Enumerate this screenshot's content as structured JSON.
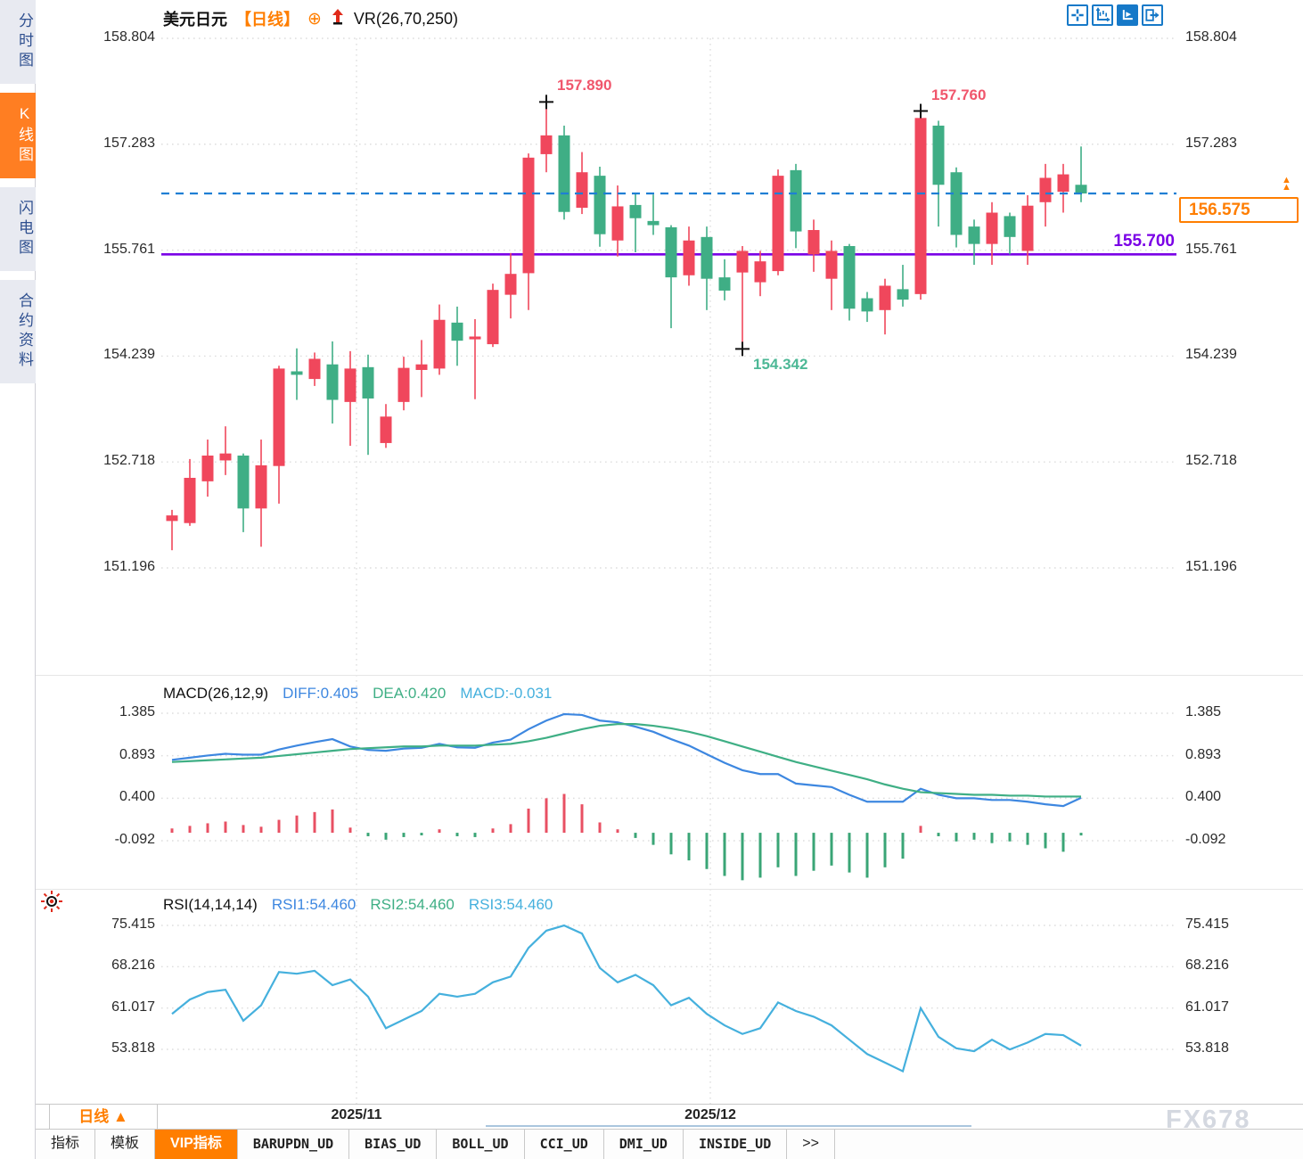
{
  "sidebar": {
    "items": [
      {
        "label": "分时图",
        "active": false
      },
      {
        "label": "K线图",
        "active": true
      },
      {
        "label": "闪电图",
        "active": false
      },
      {
        "label": "合约资料",
        "active": false
      }
    ]
  },
  "header": {
    "symbol": "美元日元",
    "period_tag": "【日线】",
    "plus_icon": "⊕",
    "indicator": "VR(26,70,250)"
  },
  "toolbar_icons": [
    {
      "name": "crosshair-icon",
      "active": false
    },
    {
      "name": "axis-scale-icon",
      "active": false
    },
    {
      "name": "axis-play-icon",
      "active": true
    },
    {
      "name": "jump-to-latest-icon",
      "active": false
    }
  ],
  "price_panel": {
    "y_ticks": [
      "158.804",
      "157.283",
      "155.761",
      "154.239",
      "152.718",
      "151.196"
    ],
    "support_label": "155.700",
    "current_price_label": "156.575",
    "current_price_marker": "▲"
  },
  "macd_panel": {
    "title": "MACD(26,12,9)",
    "diff_label": "DIFF:0.405",
    "dea_label": "DEA:0.420",
    "macd_label": "MACD:-0.031",
    "y_ticks": [
      "1.385",
      "0.893",
      "0.400",
      "-0.092"
    ]
  },
  "rsi_panel": {
    "title": "RSI(14,14,14)",
    "rsi1_label": "RSI1:54.460",
    "rsi2_label": "RSI2:54.460",
    "rsi3_label": "RSI3:54.460",
    "y_ticks": [
      "75.415",
      "68.216",
      "61.017",
      "53.818"
    ]
  },
  "x_axis": {
    "period_selector": "日线 ▲",
    "labels": [
      "2025/11",
      "2025/12"
    ]
  },
  "bottom_tabs": [
    {
      "label": "指标",
      "active": false,
      "mono": false
    },
    {
      "label": "模板",
      "active": false,
      "mono": false
    },
    {
      "label": "VIP指标",
      "active": true,
      "mono": false
    },
    {
      "label": "BARUPDN_UD",
      "active": false,
      "mono": true
    },
    {
      "label": "BIAS_UD",
      "active": false,
      "mono": true
    },
    {
      "label": "BOLL_UD",
      "active": false,
      "mono": true
    },
    {
      "label": "CCI_UD",
      "active": false,
      "mono": true
    },
    {
      "label": "DMI_UD",
      "active": false,
      "mono": true
    },
    {
      "label": "INSIDE_UD",
      "active": false,
      "mono": true
    },
    {
      "label": ">>",
      "active": false,
      "mono": false
    }
  ],
  "watermark": "FX678",
  "colors": {
    "accent_orange": "#ff7e00",
    "candle_up": "#f0475c",
    "candle_down": "#3fae85",
    "diff_line": "#3d87e0",
    "dea_line": "#3faf85",
    "macd_hist_pos": "#e85063",
    "macd_hist_neg": "#3aa576",
    "rsi_line": "#45b0dd",
    "macd_value_text": "#45b0dd",
    "current_price_line": "#1f7fd4",
    "support_line": "#7a00e6",
    "annotation_high": "#f0566c",
    "annotation_low": "#4db896",
    "icon_blue": "#1679c8",
    "gridline": "#dedede"
  },
  "chart_data": {
    "type": "candlestick",
    "title": "美元日元 日线 (USD/JPY daily)",
    "price_axis": {
      "gridlines": [
        158.804,
        157.283,
        155.761,
        154.239,
        152.718,
        151.196
      ]
    },
    "support_line": 155.7,
    "current_price": 156.575,
    "candles_ohlc": [
      [
        151.87,
        152.03,
        151.45,
        151.95
      ],
      [
        151.84,
        152.76,
        151.8,
        152.49
      ],
      [
        152.44,
        153.04,
        152.22,
        152.81
      ],
      [
        152.74,
        153.23,
        152.53,
        152.84
      ],
      [
        152.81,
        152.84,
        151.71,
        152.05
      ],
      [
        152.05,
        153.04,
        151.5,
        152.67
      ],
      [
        152.66,
        154.1,
        152.12,
        154.06
      ],
      [
        154.02,
        154.35,
        153.61,
        153.97
      ],
      [
        153.91,
        154.29,
        153.81,
        154.2
      ],
      [
        154.12,
        154.45,
        153.27,
        153.61
      ],
      [
        153.58,
        154.31,
        152.95,
        154.06
      ],
      [
        154.08,
        154.26,
        152.82,
        153.63
      ],
      [
        152.99,
        153.55,
        152.92,
        153.37
      ],
      [
        153.58,
        154.23,
        153.46,
        154.07
      ],
      [
        154.04,
        154.47,
        153.65,
        154.12
      ],
      [
        154.06,
        154.98,
        153.97,
        154.76
      ],
      [
        154.72,
        154.95,
        154.1,
        154.46
      ],
      [
        154.48,
        154.77,
        153.62,
        154.52
      ],
      [
        154.41,
        155.28,
        154.37,
        155.19
      ],
      [
        155.12,
        155.72,
        154.78,
        155.42
      ],
      [
        155.43,
        157.15,
        154.9,
        157.09
      ],
      [
        157.14,
        157.89,
        156.88,
        157.41
      ],
      [
        157.41,
        157.55,
        156.2,
        156.31
      ],
      [
        156.37,
        157.17,
        156.28,
        156.88
      ],
      [
        156.83,
        156.96,
        155.81,
        155.99
      ],
      [
        155.9,
        156.69,
        155.67,
        156.39
      ],
      [
        156.41,
        156.58,
        155.73,
        156.22
      ],
      [
        156.18,
        156.56,
        155.98,
        156.12
      ],
      [
        156.09,
        156.12,
        154.64,
        155.37
      ],
      [
        155.4,
        156.1,
        155.25,
        155.9
      ],
      [
        155.95,
        156.1,
        154.9,
        155.35
      ],
      [
        155.37,
        155.63,
        155.04,
        155.18
      ],
      [
        155.44,
        155.82,
        154.34,
        155.75
      ],
      [
        155.3,
        155.75,
        155.1,
        155.6
      ],
      [
        155.46,
        156.92,
        155.4,
        156.83
      ],
      [
        156.91,
        157.0,
        155.79,
        156.03
      ],
      [
        155.7,
        156.2,
        155.45,
        156.05
      ],
      [
        155.35,
        155.9,
        154.9,
        155.75
      ],
      [
        155.82,
        155.85,
        154.75,
        154.92
      ],
      [
        155.07,
        155.16,
        154.73,
        154.88
      ],
      [
        154.9,
        155.35,
        154.55,
        155.25
      ],
      [
        155.2,
        155.55,
        154.95,
        155.05
      ],
      [
        155.13,
        157.76,
        155.05,
        157.66
      ],
      [
        157.55,
        157.62,
        156.1,
        156.7
      ],
      [
        156.88,
        156.95,
        155.8,
        155.98
      ],
      [
        156.1,
        156.2,
        155.55,
        155.85
      ],
      [
        155.85,
        156.45,
        155.55,
        156.3
      ],
      [
        156.25,
        156.3,
        155.7,
        155.95
      ],
      [
        155.75,
        156.55,
        155.55,
        156.4
      ],
      [
        156.45,
        157.0,
        156.1,
        156.8
      ],
      [
        156.6,
        157.0,
        156.3,
        156.85
      ],
      [
        156.7,
        157.25,
        156.45,
        156.575
      ]
    ],
    "annotations": [
      {
        "kind": "high",
        "candle_index": 21,
        "price": 157.89,
        "label": "157.890"
      },
      {
        "kind": "high",
        "candle_index": 42,
        "price": 157.76,
        "label": "157.760"
      },
      {
        "kind": "low",
        "candle_index": 32,
        "price": 154.342,
        "label": "154.342"
      }
    ],
    "month_ticks": [
      {
        "label": "2025/11",
        "index": 10.35
      },
      {
        "label": "2025/12",
        "index": 30.2
      }
    ],
    "macd": {
      "params": "26,12,9",
      "diff_value": 0.405,
      "dea_value": 0.42,
      "macd_value": -0.031,
      "gridlines": [
        1.385,
        0.893,
        0.4,
        -0.092
      ],
      "diff": [
        0.845,
        0.87,
        0.895,
        0.915,
        0.905,
        0.905,
        0.965,
        1.01,
        1.05,
        1.085,
        1.0,
        0.96,
        0.95,
        0.975,
        0.985,
        1.03,
        0.99,
        0.985,
        1.045,
        1.08,
        1.2,
        1.3,
        1.375,
        1.365,
        1.3,
        1.28,
        1.23,
        1.17,
        1.085,
        1.01,
        0.91,
        0.81,
        0.725,
        0.68,
        0.68,
        0.57,
        0.55,
        0.53,
        0.44,
        0.36,
        0.36,
        0.36,
        0.51,
        0.44,
        0.4,
        0.4,
        0.38,
        0.38,
        0.36,
        0.33,
        0.31,
        0.405
      ],
      "dea": [
        0.82,
        0.83,
        0.84,
        0.85,
        0.86,
        0.87,
        0.89,
        0.91,
        0.93,
        0.95,
        0.97,
        0.98,
        0.99,
        1.0,
        1.0,
        1.01,
        1.01,
        1.01,
        1.02,
        1.03,
        1.06,
        1.1,
        1.15,
        1.2,
        1.24,
        1.26,
        1.26,
        1.24,
        1.21,
        1.17,
        1.12,
        1.06,
        1.0,
        0.94,
        0.88,
        0.82,
        0.77,
        0.72,
        0.67,
        0.62,
        0.56,
        0.51,
        0.47,
        0.46,
        0.45,
        0.44,
        0.44,
        0.43,
        0.43,
        0.42,
        0.42,
        0.42
      ],
      "hist": [
        0.05,
        0.08,
        0.11,
        0.13,
        0.09,
        0.07,
        0.15,
        0.2,
        0.24,
        0.27,
        0.06,
        -0.04,
        -0.08,
        -0.05,
        -0.03,
        0.04,
        -0.04,
        -0.05,
        0.05,
        0.1,
        0.28,
        0.4,
        0.45,
        0.33,
        0.12,
        0.04,
        -0.06,
        -0.14,
        -0.25,
        -0.32,
        -0.42,
        -0.5,
        -0.55,
        -0.52,
        -0.4,
        -0.5,
        -0.44,
        -0.38,
        -0.46,
        -0.52,
        -0.4,
        -0.3,
        0.08,
        -0.04,
        -0.1,
        -0.08,
        -0.12,
        -0.1,
        -0.14,
        -0.18,
        -0.22,
        -0.031
      ]
    },
    "rsi": {
      "params": "14,14,14",
      "final_value": 54.46,
      "gridlines": [
        75.415,
        68.216,
        61.017,
        53.818
      ],
      "values": [
        60.0,
        62.5,
        63.8,
        64.2,
        58.8,
        61.5,
        67.3,
        67.0,
        67.5,
        65.0,
        66.0,
        63.0,
        57.5,
        59.0,
        60.5,
        63.5,
        63.0,
        63.5,
        65.5,
        66.5,
        71.5,
        74.5,
        75.4,
        74.0,
        68.0,
        65.5,
        66.8,
        65.0,
        61.5,
        62.8,
        60.0,
        58.0,
        56.5,
        57.5,
        62.0,
        60.5,
        59.5,
        58.0,
        55.5,
        53.0,
        51.5,
        50.0,
        61.0,
        56.0,
        54.0,
        53.5,
        55.5,
        53.8,
        55.0,
        56.5,
        56.3,
        54.46
      ]
    }
  }
}
